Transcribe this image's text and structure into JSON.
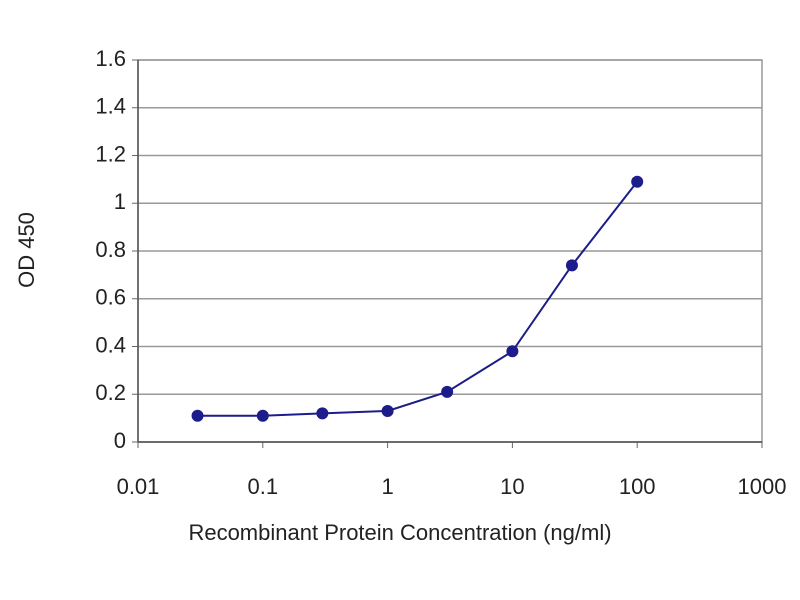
{
  "chart_data": {
    "type": "line",
    "xlabel": "Recombinant Protein Concentration (ng/ml)",
    "ylabel": "OD 450",
    "x": [
      0.03,
      0.1,
      0.3,
      1,
      3,
      10,
      30,
      100
    ],
    "values": [
      0.11,
      0.11,
      0.12,
      0.13,
      0.21,
      0.38,
      0.74,
      1.09
    ],
    "color": "#1c1c8a",
    "xscale": "log",
    "xlim": [
      0.01,
      1000
    ],
    "xticks": [
      0.01,
      0.1,
      1,
      10,
      100,
      1000
    ],
    "ylim": [
      0,
      1.6
    ],
    "yticks": [
      0,
      0.2,
      0.4,
      0.6,
      0.8,
      1,
      1.2,
      1.4,
      1.6
    ],
    "grid": true
  }
}
